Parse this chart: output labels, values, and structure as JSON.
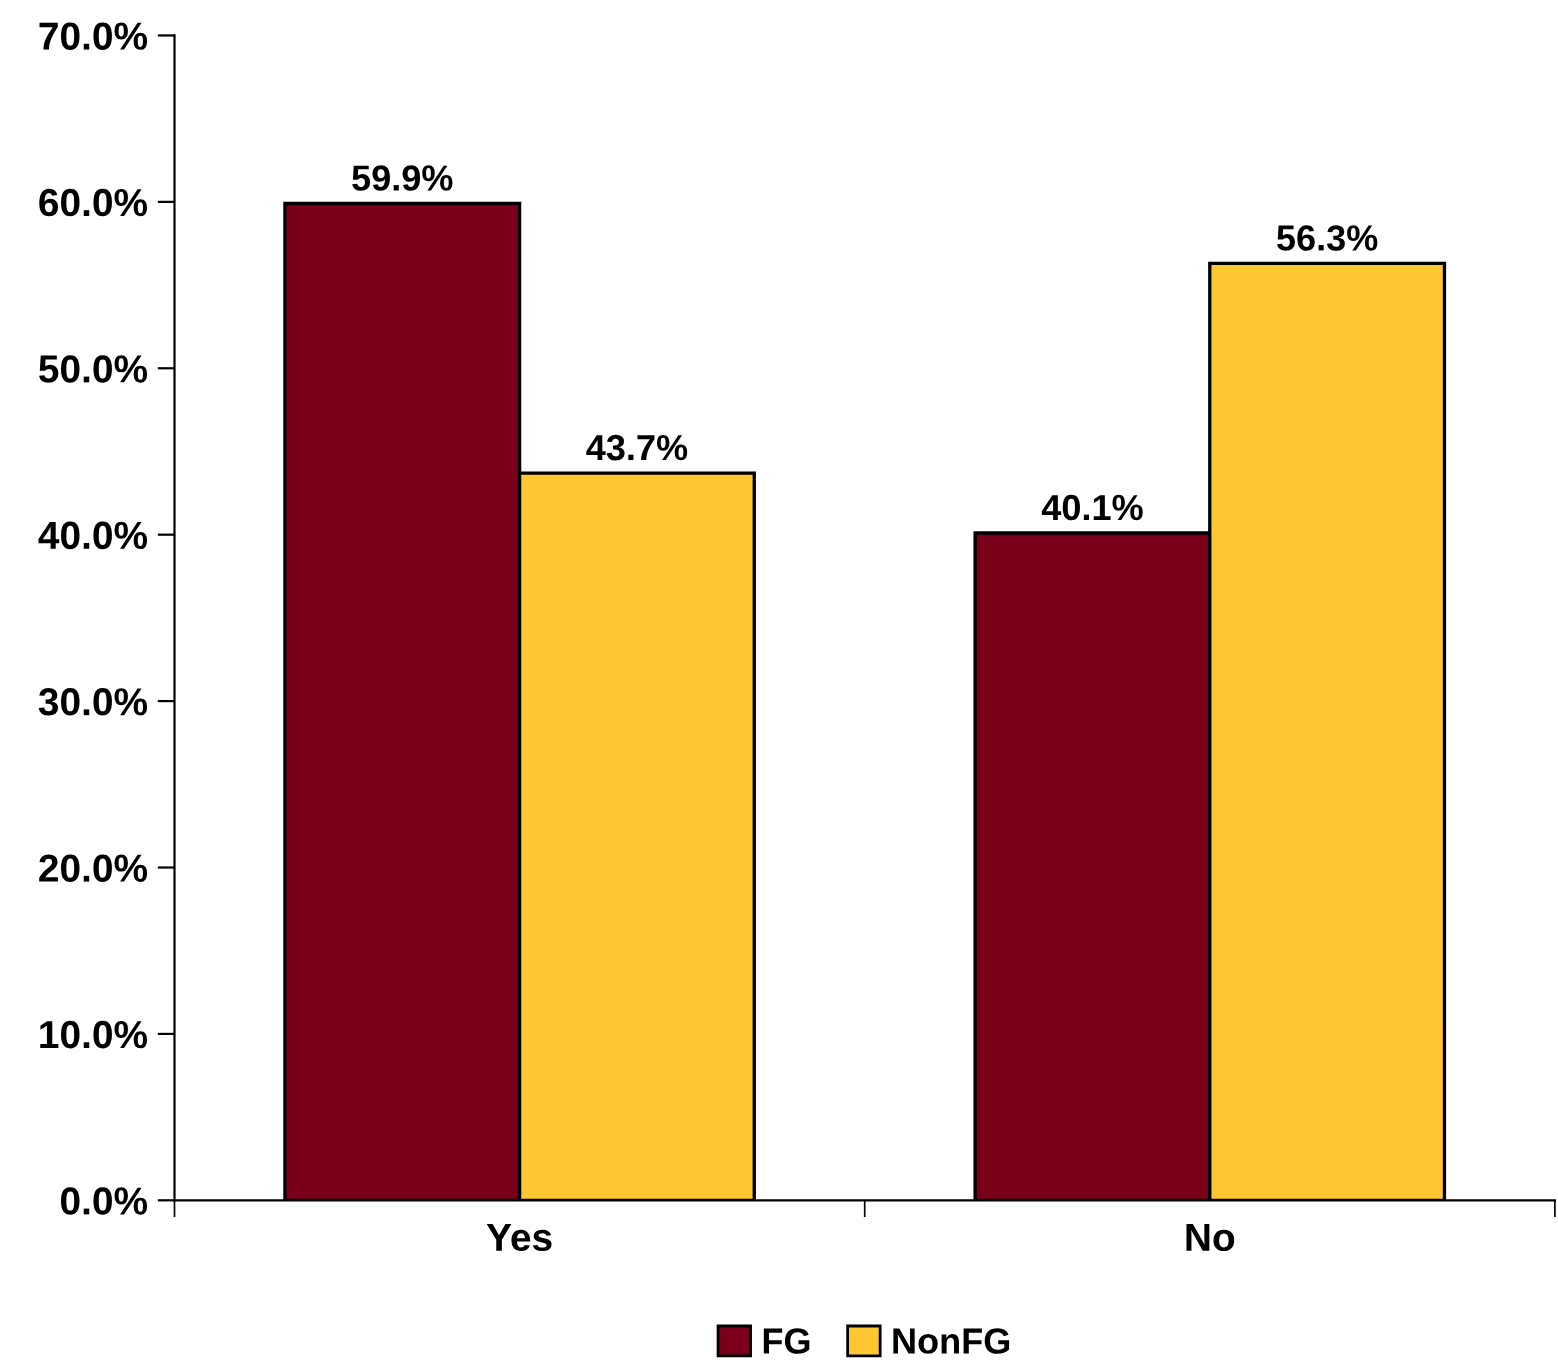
{
  "chart_data": {
    "type": "bar",
    "categories": [
      "Yes",
      "No"
    ],
    "series": [
      {
        "name": "FG",
        "color": "#7a0019",
        "values": [
          59.9,
          40.1
        ],
        "value_labels": [
          "59.9%",
          "40.1%"
        ]
      },
      {
        "name": "NonFG",
        "color": "#ffc832",
        "values": [
          43.7,
          56.3
        ],
        "value_labels": [
          "43.7%",
          "56.3%"
        ]
      }
    ],
    "ylim": [
      0,
      70
    ],
    "yticks": [
      {
        "value": 0,
        "label": "0.0%"
      },
      {
        "value": 10,
        "label": "10.0%"
      },
      {
        "value": 20,
        "label": "20.0%"
      },
      {
        "value": 30,
        "label": "30.0%"
      },
      {
        "value": 40,
        "label": "40.0%"
      },
      {
        "value": 50,
        "label": "50.0%"
      },
      {
        "value": 60,
        "label": "60.0%"
      },
      {
        "value": 70,
        "label": "70.0%"
      }
    ],
    "grid": false,
    "legend": "bottom"
  }
}
